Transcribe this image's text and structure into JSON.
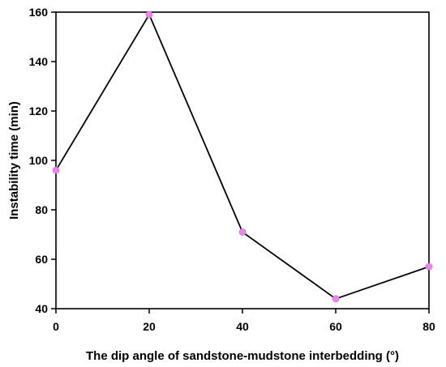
{
  "chart_data": {
    "type": "line",
    "xlabel": "The dip angle of sandstone-mudstone interbedding (°)",
    "ylabel": "Instability time (min)",
    "x": [
      0,
      20,
      40,
      60,
      80
    ],
    "series": [
      {
        "values": [
          96,
          159,
          71,
          44,
          57
        ]
      }
    ],
    "xlim": [
      0,
      80
    ],
    "ylim": [
      40,
      160
    ],
    "xticks": [
      0,
      20,
      40,
      60,
      80
    ],
    "yticks": [
      40,
      60,
      80,
      100,
      120,
      140,
      160
    ],
    "grid": false,
    "line_color": "#000000",
    "marker_color": "#ee82ee"
  }
}
